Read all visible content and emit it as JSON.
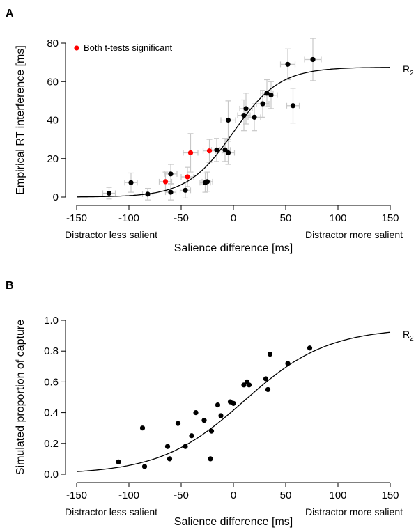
{
  "chart_data": [
    {
      "type": "scatter",
      "panel_label": "A",
      "ylabel": "Empirical RT interference [ms]",
      "xlabel": "Salience difference [ms]",
      "xlim": [
        -150,
        150
      ],
      "ylim": [
        0,
        80
      ],
      "x_ticks": [
        -150,
        -100,
        -50,
        0,
        50,
        100,
        150
      ],
      "y_ticks": [
        0,
        20,
        40,
        60,
        80
      ],
      "x_tick_labels": [
        "-150",
        "-100",
        "-50",
        "0",
        "50",
        "100",
        "150"
      ],
      "y_tick_labels": [
        "0",
        "20",
        "40",
        "60",
        "80"
      ],
      "corner_left": "Distractor less salient",
      "corner_right": "Distractor more salient",
      "legend": {
        "label": "Both t-tests significant",
        "color": "#ff0000",
        "position": "top-left"
      },
      "curve": {
        "label_main": "R",
        "label_sub": "2",
        "min": 0,
        "max": 67.5,
        "midpoint": 0,
        "slope": 0.045
      },
      "colors": {
        "point": "#000000",
        "significant": "#ff0000",
        "error_bar": "#c8c8c8",
        "curve": "#000000"
      },
      "points": [
        {
          "x": -119,
          "y": 2.0,
          "xerr": 6,
          "yerr": 3,
          "sig": false
        },
        {
          "x": -98,
          "y": 7.5,
          "xerr": 6,
          "yerr": 5,
          "sig": false
        },
        {
          "x": -82,
          "y": 1.5,
          "xerr": 5,
          "yerr": 3,
          "sig": false
        },
        {
          "x": -65,
          "y": 8.0,
          "xerr": 6,
          "yerr": 5,
          "sig": true
        },
        {
          "x": -60,
          "y": 12.0,
          "xerr": 6,
          "yerr": 5,
          "sig": false
        },
        {
          "x": -60,
          "y": 2.5,
          "xerr": 5,
          "yerr": 4,
          "sig": false
        },
        {
          "x": -46,
          "y": 3.5,
          "xerr": 5,
          "yerr": 4,
          "sig": false
        },
        {
          "x": -44,
          "y": 10.5,
          "xerr": 6,
          "yerr": 5,
          "sig": true
        },
        {
          "x": -41,
          "y": 23.0,
          "xerr": 7,
          "yerr": 10,
          "sig": true
        },
        {
          "x": -27,
          "y": 7.5,
          "xerr": 5,
          "yerr": 5,
          "sig": false
        },
        {
          "x": -25,
          "y": 8.0,
          "xerr": 5,
          "yerr": 5,
          "sig": false
        },
        {
          "x": -23,
          "y": 24.0,
          "xerr": 6,
          "yerr": 6,
          "sig": true
        },
        {
          "x": -16,
          "y": 24.5,
          "xerr": 5,
          "yerr": 6,
          "sig": false
        },
        {
          "x": -8,
          "y": 24.5,
          "xerr": 5,
          "yerr": 6,
          "sig": false
        },
        {
          "x": -5,
          "y": 23.0,
          "xerr": 6,
          "yerr": 6,
          "sig": false
        },
        {
          "x": -5,
          "y": 40.0,
          "xerr": 7,
          "yerr": 10,
          "sig": false
        },
        {
          "x": 10,
          "y": 42.5,
          "xerr": 6,
          "yerr": 8,
          "sig": false
        },
        {
          "x": 12,
          "y": 46.0,
          "xerr": 6,
          "yerr": 8,
          "sig": false
        },
        {
          "x": 20,
          "y": 41.5,
          "xerr": 6,
          "yerr": 7,
          "sig": false
        },
        {
          "x": 28,
          "y": 48.5,
          "xerr": 6,
          "yerr": 7,
          "sig": false
        },
        {
          "x": 32,
          "y": 54.0,
          "xerr": 6,
          "yerr": 7,
          "sig": false
        },
        {
          "x": 36,
          "y": 53.0,
          "xerr": 6,
          "yerr": 7,
          "sig": false
        },
        {
          "x": 52,
          "y": 69.0,
          "xerr": 7,
          "yerr": 8,
          "sig": false
        },
        {
          "x": 57,
          "y": 47.5,
          "xerr": 6,
          "yerr": 9,
          "sig": false
        },
        {
          "x": 76,
          "y": 71.5,
          "xerr": 8,
          "yerr": 11,
          "sig": false
        }
      ]
    },
    {
      "type": "scatter",
      "panel_label": "B",
      "ylabel": "Simulated proportion of capture",
      "xlabel": "Salience difference [ms]",
      "xlim": [
        -150,
        150
      ],
      "ylim": [
        0,
        1
      ],
      "x_ticks": [
        -150,
        -100,
        -50,
        0,
        50,
        100,
        150
      ],
      "y_ticks": [
        0,
        0.2,
        0.4,
        0.6,
        0.8,
        1.0
      ],
      "x_tick_labels": [
        "-150",
        "-100",
        "-50",
        "0",
        "50",
        "100",
        "150"
      ],
      "y_tick_labels": [
        "0.0",
        "0.2",
        "0.4",
        "0.6",
        "0.8",
        "1.0"
      ],
      "corner_left": "Distractor less salient",
      "corner_right": "Distractor more salient",
      "curve": {
        "label_main": "R",
        "label_sub": "2",
        "min": 0,
        "max": 0.95,
        "midpoint": 10,
        "slope": 0.025
      },
      "colors": {
        "point": "#000000",
        "curve": "#000000"
      },
      "points": [
        {
          "x": -110,
          "y": 0.08
        },
        {
          "x": -87,
          "y": 0.3
        },
        {
          "x": -85,
          "y": 0.05
        },
        {
          "x": -63,
          "y": 0.18
        },
        {
          "x": -61,
          "y": 0.1
        },
        {
          "x": -53,
          "y": 0.33
        },
        {
          "x": -46,
          "y": 0.18
        },
        {
          "x": -40,
          "y": 0.25
        },
        {
          "x": -36,
          "y": 0.4
        },
        {
          "x": -28,
          "y": 0.35
        },
        {
          "x": -22,
          "y": 0.1
        },
        {
          "x": -21,
          "y": 0.28
        },
        {
          "x": -15,
          "y": 0.45
        },
        {
          "x": -12,
          "y": 0.38
        },
        {
          "x": -3,
          "y": 0.47
        },
        {
          "x": 0,
          "y": 0.46
        },
        {
          "x": 10,
          "y": 0.58
        },
        {
          "x": 13,
          "y": 0.6
        },
        {
          "x": 15,
          "y": 0.58
        },
        {
          "x": 31,
          "y": 0.62
        },
        {
          "x": 33,
          "y": 0.55
        },
        {
          "x": 35,
          "y": 0.78
        },
        {
          "x": 52,
          "y": 0.72
        },
        {
          "x": 73,
          "y": 0.82
        }
      ]
    }
  ]
}
